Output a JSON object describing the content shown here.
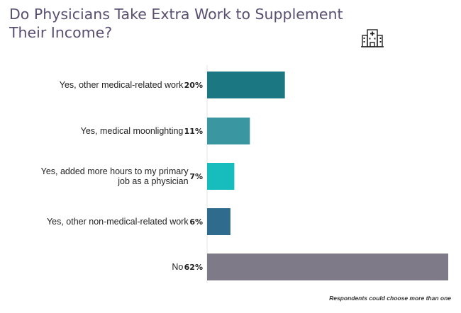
{
  "chart_data": {
    "type": "bar",
    "orientation": "horizontal",
    "title": "Do Physicians Take Extra Work to Supplement Their Income?",
    "categories": [
      [
        "Yes, other medical-related work"
      ],
      [
        "Yes, medical moonlighting"
      ],
      [
        "Yes, added more hours to my primary",
        "job as a physician"
      ],
      [
        "Yes, other non-medical-related work"
      ],
      [
        "No"
      ]
    ],
    "values": [
      20,
      11,
      7,
      6,
      62
    ],
    "value_labels": [
      "20%",
      "11%",
      "7%",
      "6%",
      "62%"
    ],
    "colors": [
      "#1b7882",
      "#3a97a1",
      "#17bcbc",
      "#2f6b8c",
      "#7e7a88"
    ],
    "xlim": [
      0,
      62
    ],
    "grid": false,
    "legend": "none",
    "footnote": "Respondents could choose more than one"
  },
  "icon": "hospital-icon"
}
